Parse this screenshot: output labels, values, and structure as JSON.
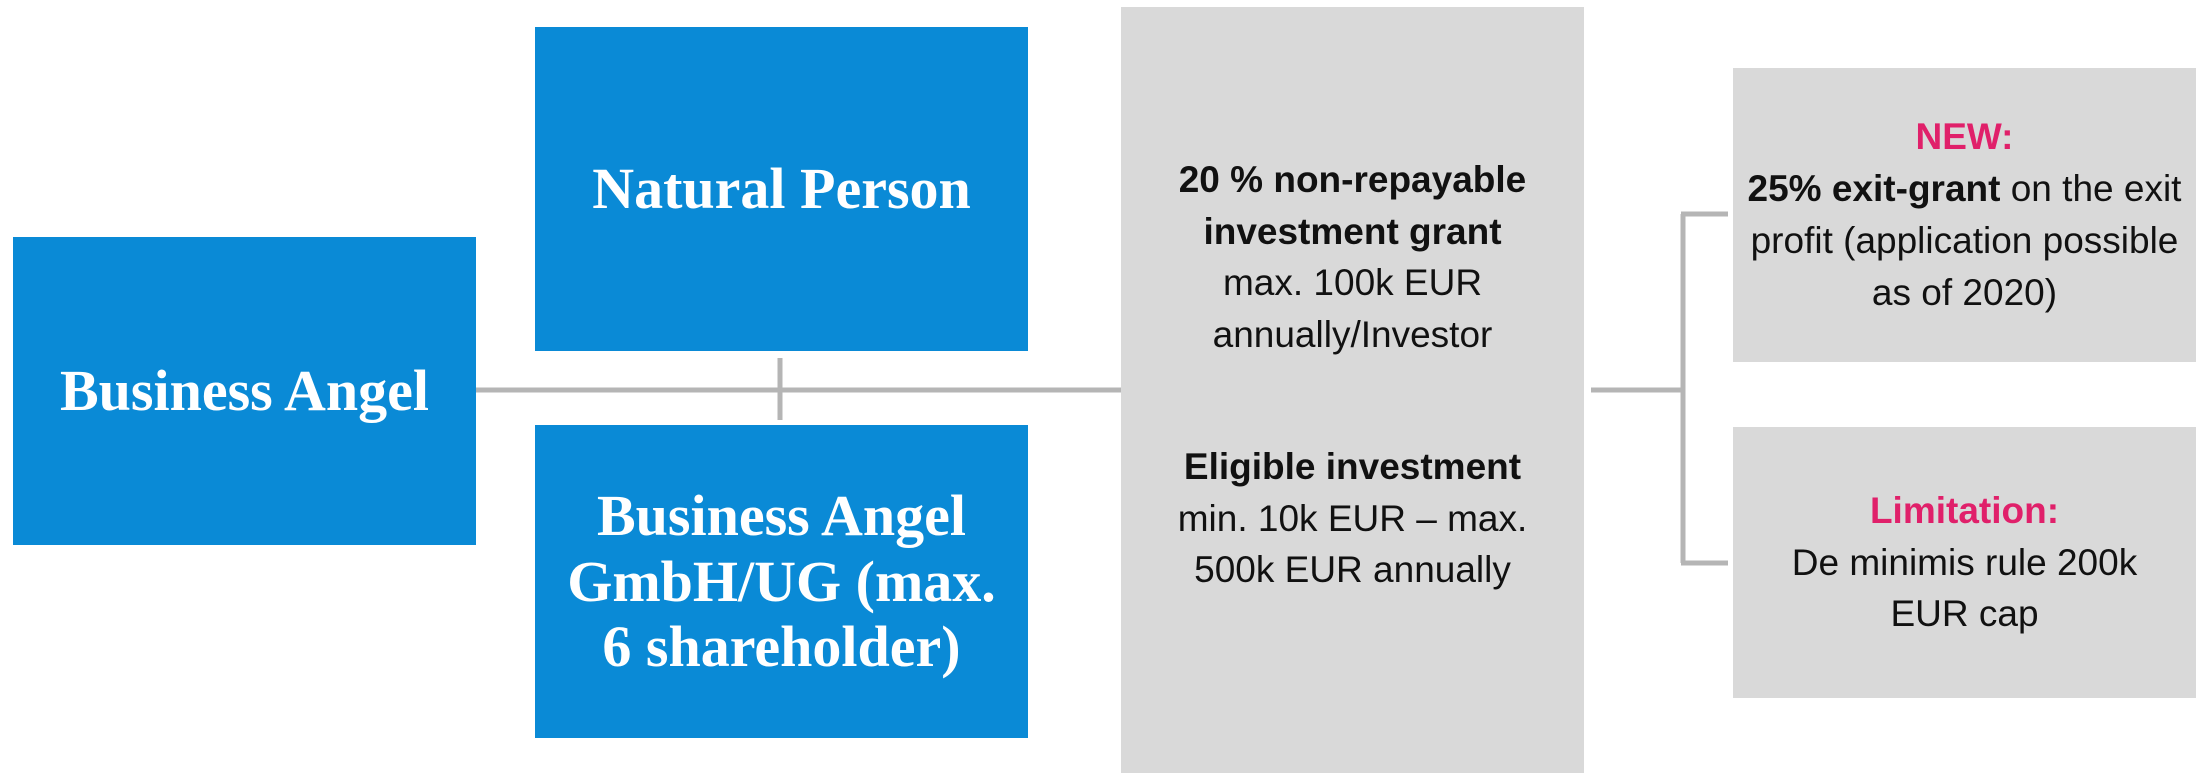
{
  "nodes": [
    {
      "label": "Business Angel"
    },
    {
      "label": "Natural Person"
    },
    {
      "label": "Business Angel GmbH/UG (max. 6 shareholder)"
    }
  ],
  "center": {
    "blocks": [
      {
        "bold": "20 % non-repayable investment grant",
        "text": "max. 100k EUR annually/Investor"
      },
      {
        "bold": "Eligible investment",
        "text": "min. 10k EUR – max. 500k EUR annually"
      }
    ]
  },
  "outcomes": [
    {
      "heading": "NEW:",
      "bold": "25% exit-grant",
      "text": "on the exit profit (application possible as of 2020)"
    },
    {
      "heading": "Limitation:",
      "text": "De minimis rule 200k EUR cap"
    }
  ]
}
